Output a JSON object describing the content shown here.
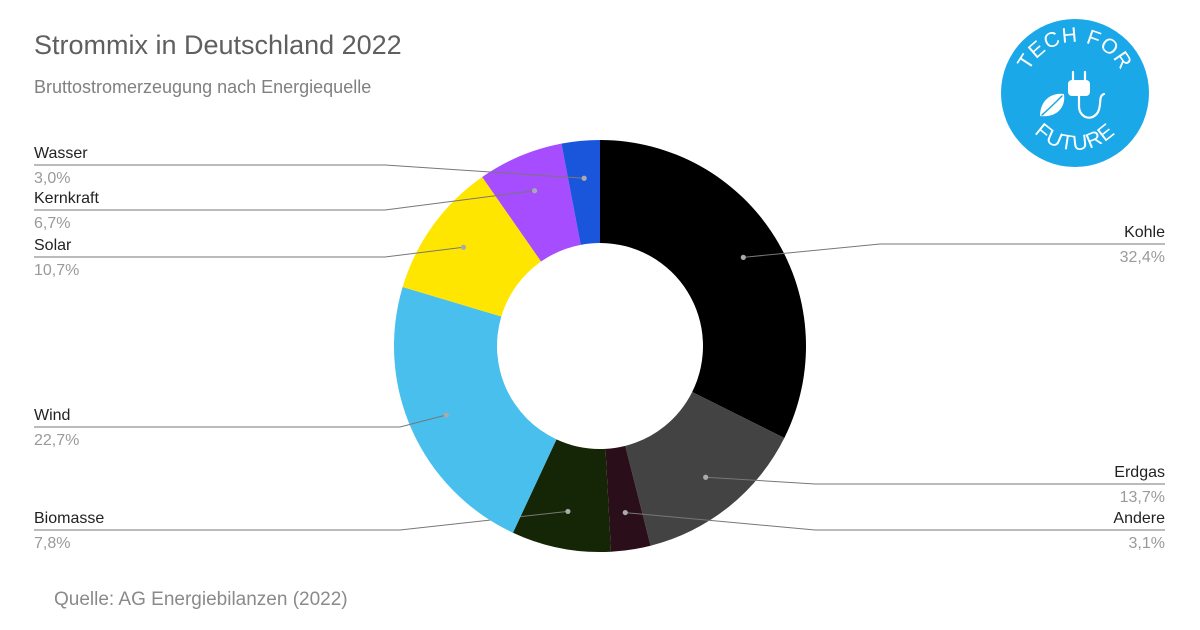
{
  "title": "Strommix in Deutschland 2022",
  "subtitle": "Bruttostromerzeugung nach Energiequelle",
  "source": "Quelle: AG Energiebilanzen (2022)",
  "logo": {
    "text_top": "TECH FOR",
    "text_bottom": "FUTURE",
    "color": "#1ba8e8",
    "icon": "plug-leaf-icon"
  },
  "chart_data": {
    "type": "pie",
    "variant": "donut",
    "title": "Strommix in Deutschland 2022",
    "subtitle": "Bruttostromerzeugung nach Energiequelle",
    "start": "12 o'clock",
    "direction": "clockwise",
    "slices": [
      {
        "name": "Kohle",
        "value": 32.4,
        "label": "32,4%",
        "color": "#000000",
        "side": "right"
      },
      {
        "name": "Erdgas",
        "value": 13.7,
        "label": "13,7%",
        "color": "#434343",
        "side": "right"
      },
      {
        "name": "Andere",
        "value": 3.1,
        "label": "3,1%",
        "color": "#2a0e1a",
        "side": "right"
      },
      {
        "name": "Biomasse",
        "value": 7.8,
        "label": "7,8%",
        "color": "#142606",
        "side": "left"
      },
      {
        "name": "Wind",
        "value": 22.7,
        "label": "22,7%",
        "color": "#48bfed",
        "side": "left"
      },
      {
        "name": "Solar",
        "value": 10.7,
        "label": "10,7%",
        "color": "#ffe600",
        "side": "left"
      },
      {
        "name": "Kernkraft",
        "value": 6.7,
        "label": "6,7%",
        "color": "#a64dff",
        "side": "left"
      },
      {
        "name": "Wasser",
        "value": 3.0,
        "label": "3,0%",
        "color": "#1a56db",
        "side": "left"
      }
    ]
  }
}
